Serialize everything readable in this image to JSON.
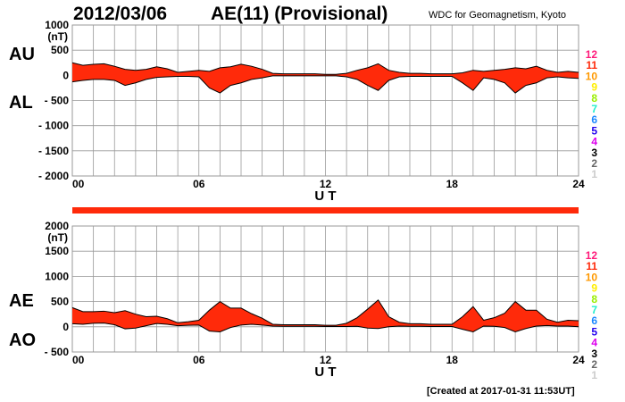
{
  "header": {
    "date": "2012/03/06",
    "title": "AE(11) (Provisional)",
    "source": "WDC for Geomagnetism, Kyoto"
  },
  "footer": {
    "created": "[Created at 2017-01-31 11:53UT]"
  },
  "colors": {
    "fill": "#ff2a0a",
    "line": "#000000",
    "grid": "#999999",
    "bar": "#ff2a0a"
  },
  "station_legend": [
    {
      "label": "12",
      "color": "#ff1a7a"
    },
    {
      "label": "11",
      "color": "#ff2a0a"
    },
    {
      "label": "10",
      "color": "#ff9900"
    },
    {
      "label": "9",
      "color": "#ffee00"
    },
    {
      "label": "8",
      "color": "#99ee00"
    },
    {
      "label": "7",
      "color": "#22eecc"
    },
    {
      "label": "6",
      "color": "#1a88ff"
    },
    {
      "label": "5",
      "color": "#2200ee"
    },
    {
      "label": "4",
      "color": "#dd00ee"
    },
    {
      "label": "3",
      "color": "#000000"
    },
    {
      "label": "2",
      "color": "#666666"
    },
    {
      "label": "1",
      "color": "#cccccc"
    }
  ],
  "chart_data": [
    {
      "type": "area",
      "name": "AU/AL",
      "labels": {
        "upper": "AU",
        "lower": "AL"
      },
      "ylabel": "(nT)",
      "xlabel": "U T",
      "ylim": [
        -2000,
        1000
      ],
      "yticks": [
        "1000",
        "500",
        "0",
        "- 500",
        "- 1000",
        "- 1500",
        "- 2000"
      ],
      "xlim": [
        0,
        24
      ],
      "xticks": [
        "00",
        "06",
        "12",
        "18",
        "24"
      ],
      "grid": true,
      "x": [
        0,
        0.5,
        1,
        1.5,
        2,
        2.5,
        3,
        3.5,
        4,
        4.5,
        5,
        5.5,
        6,
        6.5,
        7,
        7.5,
        8,
        8.5,
        9,
        9.5,
        10,
        10.5,
        11,
        11.5,
        12,
        12.5,
        13,
        13.5,
        14,
        14.5,
        15,
        15.5,
        16,
        16.5,
        17,
        17.5,
        18,
        18.5,
        19,
        19.5,
        20,
        20.5,
        21,
        21.5,
        22,
        22.5,
        23,
        23.5,
        24
      ],
      "AU": [
        250,
        200,
        220,
        230,
        180,
        120,
        100,
        120,
        170,
        130,
        60,
        80,
        100,
        80,
        150,
        170,
        220,
        180,
        120,
        40,
        30,
        30,
        30,
        30,
        20,
        20,
        40,
        100,
        150,
        230,
        100,
        60,
        40,
        40,
        30,
        30,
        30,
        50,
        100,
        80,
        100,
        120,
        150,
        130,
        180,
        100,
        60,
        80,
        60
      ],
      "AL": [
        -130,
        -100,
        -80,
        -80,
        -100,
        -200,
        -150,
        -80,
        -40,
        -30,
        -20,
        -20,
        -30,
        -250,
        -350,
        -200,
        -150,
        -80,
        -50,
        -10,
        -10,
        -10,
        -10,
        -10,
        -10,
        -10,
        -30,
        -80,
        -200,
        -300,
        -100,
        -30,
        -20,
        -20,
        -20,
        -20,
        -20,
        -150,
        -300,
        -50,
        -80,
        -150,
        -350,
        -200,
        -150,
        -50,
        -30,
        -50,
        -60
      ]
    },
    {
      "type": "area",
      "name": "AE/AO",
      "labels": {
        "upper": "AE",
        "lower": "AO"
      },
      "ylabel": "(nT)",
      "xlabel": "U T",
      "ylim": [
        -500,
        2000
      ],
      "yticks": [
        "2000",
        "1500",
        "1000",
        "500",
        "0",
        "- 500"
      ],
      "xlim": [
        0,
        24
      ],
      "xticks": [
        "00",
        "06",
        "12",
        "18",
        "24"
      ],
      "grid": true,
      "derived": "AE = AU - AL, AO = (AU + AL) / 2"
    }
  ]
}
